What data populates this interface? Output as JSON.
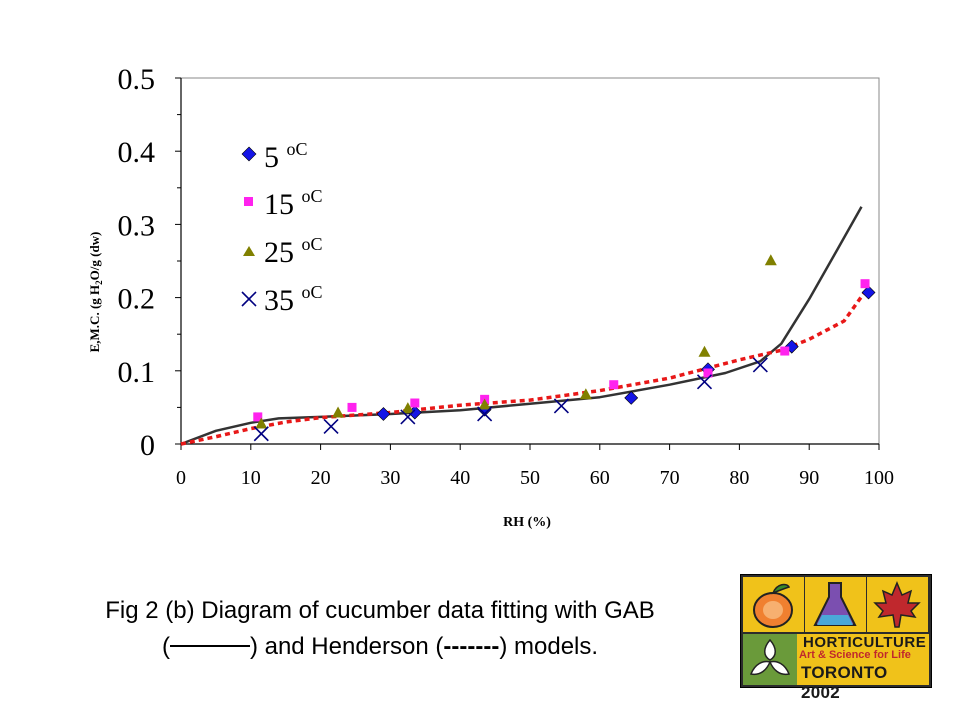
{
  "chart_data": {
    "type": "scatter",
    "title": "",
    "xlabel": "RH (%)",
    "ylabel": "E,M.C. (g H2O/g (dw)",
    "xlim": [
      0,
      100
    ],
    "ylim": [
      0,
      0.5
    ],
    "x_ticks": [
      "0",
      "10",
      "20",
      "30",
      "40",
      "50",
      "60",
      "70",
      "80",
      "90",
      "100"
    ],
    "y_ticks": [
      "0",
      "0.1",
      "0.2",
      "0.3",
      "0.4",
      "0.5"
    ],
    "grid": false,
    "legend_position": "top-left",
    "series": [
      {
        "name": "5 oC",
        "marker": "diamond",
        "color": "#1414e6",
        "points": [
          [
            29,
            0.041
          ],
          [
            33.5,
            0.043
          ],
          [
            43.5,
            0.047
          ],
          [
            64.5,
            0.063
          ],
          [
            75.5,
            0.102
          ],
          [
            87.5,
            0.133
          ],
          [
            98.5,
            0.207
          ]
        ]
      },
      {
        "name": "15oC",
        "marker": "square",
        "color": "#ff22ee",
        "points": [
          [
            11,
            0.037
          ],
          [
            24.5,
            0.05
          ],
          [
            33.5,
            0.056
          ],
          [
            43.5,
            0.061
          ],
          [
            62,
            0.081
          ],
          [
            75.5,
            0.097
          ],
          [
            86.5,
            0.127
          ],
          [
            98,
            0.219
          ]
        ]
      },
      {
        "name": "25oC",
        "marker": "triangle",
        "color": "#808000",
        "points": [
          [
            11.5,
            0.028
          ],
          [
            22.5,
            0.043
          ],
          [
            32.5,
            0.049
          ],
          [
            43.5,
            0.054
          ],
          [
            58,
            0.068
          ],
          [
            75,
            0.126
          ],
          [
            84.5,
            0.251
          ]
        ]
      },
      {
        "name": "35oC",
        "marker": "x",
        "color": "#000080",
        "points": [
          [
            11.5,
            0.014
          ],
          [
            21.5,
            0.024
          ],
          [
            32.5,
            0.037
          ],
          [
            43.5,
            0.041
          ],
          [
            54.5,
            0.052
          ],
          [
            75,
            0.085
          ],
          [
            83,
            0.108
          ]
        ]
      }
    ],
    "fits": [
      {
        "name": "GAB",
        "style": "solid",
        "color": "#333333",
        "points": [
          [
            0,
            0.0
          ],
          [
            5,
            0.018
          ],
          [
            10,
            0.029
          ],
          [
            14,
            0.035
          ],
          [
            20,
            0.037
          ],
          [
            30,
            0.041
          ],
          [
            40,
            0.046
          ],
          [
            50,
            0.055
          ],
          [
            60,
            0.064
          ],
          [
            70,
            0.081
          ],
          [
            78,
            0.097
          ],
          [
            83,
            0.113
          ],
          [
            86,
            0.137
          ],
          [
            90,
            0.198
          ],
          [
            94,
            0.265
          ],
          [
            97.5,
            0.324
          ]
        ]
      },
      {
        "name": "Henderson",
        "style": "dashed",
        "color": "#e81818",
        "points": [
          [
            0,
            0.0
          ],
          [
            5,
            0.01
          ],
          [
            10,
            0.021
          ],
          [
            15,
            0.03
          ],
          [
            20,
            0.036
          ],
          [
            30,
            0.043
          ],
          [
            40,
            0.053
          ],
          [
            50,
            0.06
          ],
          [
            60,
            0.073
          ],
          [
            70,
            0.09
          ],
          [
            80,
            0.115
          ],
          [
            86,
            0.128
          ],
          [
            90,
            0.143
          ],
          [
            95,
            0.168
          ],
          [
            98,
            0.208
          ]
        ]
      }
    ]
  },
  "legend": {
    "item1_number": "5",
    "item1_unit": "oC",
    "item2_number": "15",
    "item2_unit": "oC",
    "item3_number": "25",
    "item3_unit": "oC",
    "item4_number": "35",
    "item4_unit": "oC"
  },
  "axis_labels": {
    "x": "RH (%)",
    "y_part1": "E,M.C. (g H",
    "y_sub": "2",
    "y_part2": "O/g (dw)"
  },
  "caption": {
    "line1": "Fig 2 (b) Diagram of cucumber data fitting with GAB",
    "line2_open": "(",
    "line2_mid": ") and Henderson (",
    "line2_dashes": "-------",
    "line2_close": ") models."
  },
  "logo": {
    "title": "HORTICULTURE",
    "subtitle": "Art & Science for Life",
    "city": "TORONTO 2002",
    "colors": {
      "peach": "#f08030",
      "flask": "#7b4fb0",
      "leaf": "#c0282d",
      "band": "#f0c21a"
    }
  }
}
